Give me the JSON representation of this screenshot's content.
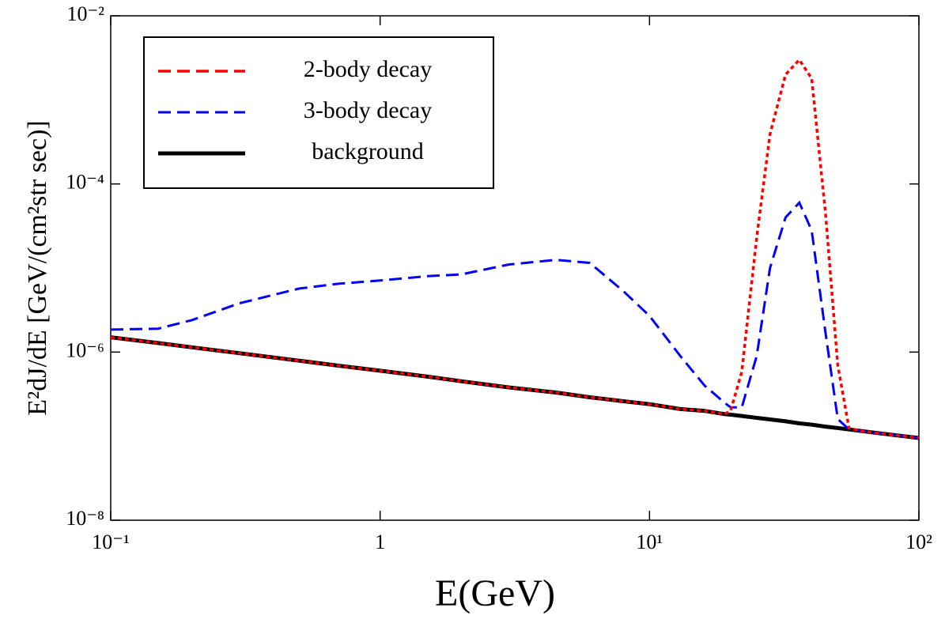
{
  "chart_data": {
    "type": "line",
    "x_label": "E(GeV)",
    "y_label": "E²dJ/dE [GeV/(cm²str sec)]",
    "xscale": "log",
    "yscale": "log",
    "xlim": [
      0.1,
      100
    ],
    "ylim": [
      1e-08,
      0.01
    ],
    "xticks": [
      {
        "value": 0.1,
        "label": "10⁻¹"
      },
      1,
      {
        "value": 10,
        "label": "10¹"
      },
      {
        "value": 100,
        "label": "10²"
      }
    ],
    "yticks": [
      {
        "value": 1e-08,
        "label": "10⁻⁸"
      },
      {
        "value": 1e-06,
        "label": "10⁻⁶"
      },
      {
        "value": 0.0001,
        "label": "10⁻⁴"
      },
      {
        "value": 0.01,
        "label": "10⁻²"
      }
    ],
    "legend": "upper left",
    "x": [
      0.1,
      0.15,
      0.2,
      0.3,
      0.5,
      0.7,
      1,
      1.5,
      2,
      3,
      4.5,
      6,
      8,
      10,
      13,
      16,
      19,
      20,
      22,
      25,
      28,
      32,
      36,
      40,
      45,
      50,
      55,
      60,
      70,
      100
    ],
    "series": [
      {
        "name": "2-body decay",
        "color": "#ff0000",
        "dash": "dotted",
        "values": [
          1.5e-06,
          1.28e-06,
          1.14e-06,
          9.7e-07,
          7.9e-07,
          6.9e-07,
          6e-07,
          5.1e-07,
          4.5e-07,
          3.8e-07,
          3.3e-07,
          2.9e-07,
          2.6e-07,
          2.4e-07,
          2.1e-07,
          2e-07,
          1.83e-07,
          2e-07,
          5.8e-07,
          2.3e-05,
          0.00039,
          0.002,
          0.003,
          0.0018,
          4.5e-05,
          7e-07,
          1.25e-07,
          1.16e-07,
          1.09e-07,
          9.5e-08
        ]
      },
      {
        "name": "3-body decay",
        "color": "#0000ff",
        "dash": "dashed",
        "values": [
          1.85e-06,
          1.9e-06,
          2.4e-06,
          3.8e-06,
          5.7e-06,
          6.5e-06,
          7.1e-06,
          8e-06,
          8.4e-06,
          1.1e-05,
          1.25e-05,
          1.15e-05,
          5.3e-06,
          2.7e-06,
          9e-07,
          4e-07,
          2.5e-07,
          2.2e-07,
          2.2e-07,
          9e-07,
          1e-05,
          4e-05,
          6e-05,
          2.8e-05,
          1.7e-06,
          1.6e-07,
          1.2e-07,
          1.16e-07,
          1.09e-07,
          9.5e-08
        ]
      },
      {
        "name": "background",
        "color": "#000000",
        "dash": "solid",
        "values": [
          1.5e-06,
          1.28e-06,
          1.14e-06,
          9.7e-07,
          7.9e-07,
          6.9e-07,
          6e-07,
          5.1e-07,
          4.5e-07,
          3.8e-07,
          3.3e-07,
          2.9e-07,
          2.6e-07,
          2.4e-07,
          2.1e-07,
          2e-07,
          1.83e-07,
          1.8e-07,
          1.74e-07,
          1.65e-07,
          1.58e-07,
          1.5e-07,
          1.42e-07,
          1.37e-07,
          1.3e-07,
          1.25e-07,
          1.2e-07,
          1.16e-07,
          1.09e-07,
          9.5e-08
        ]
      }
    ]
  }
}
